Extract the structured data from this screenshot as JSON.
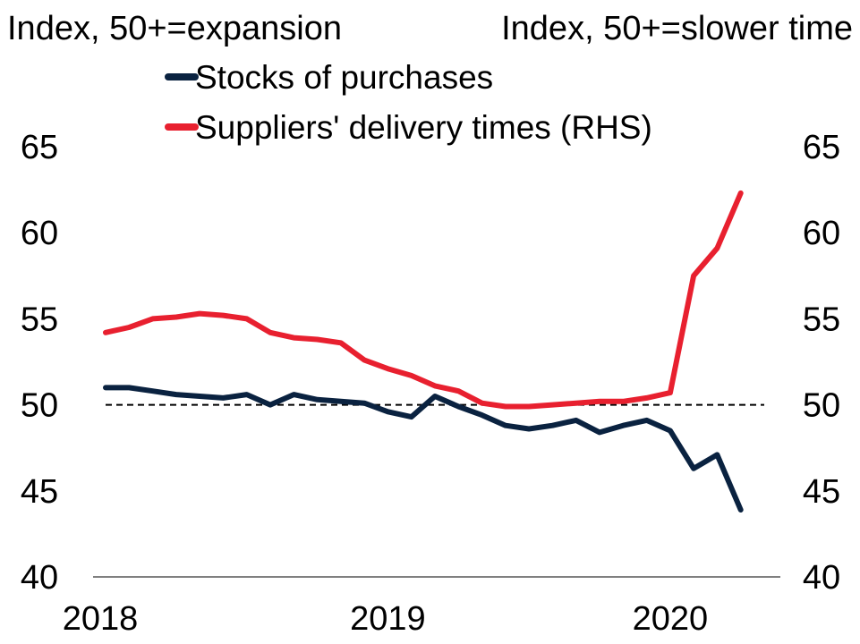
{
  "chart_data": {
    "type": "line",
    "title": "",
    "left_axis_label": "Index, 50+=expansion",
    "right_axis_label": "Index, 50+=slower time",
    "ylim": [
      40,
      65
    ],
    "y2lim": [
      40,
      65
    ],
    "yticks": [
      "40",
      "45",
      "50",
      "55",
      "60",
      "65"
    ],
    "y2ticks": [
      "40",
      "45",
      "50",
      "55",
      "60",
      "65"
    ],
    "xlim": [
      2018.0,
      2020.3333
    ],
    "xticks": [
      {
        "label": "2018",
        "value": 2018
      },
      {
        "label": "2019",
        "value": 2019
      },
      {
        "label": "2020",
        "value": 2020
      }
    ],
    "reference_line": {
      "value": 50,
      "style": "dashed",
      "color": "#000000"
    },
    "legend_position": "top-center",
    "x": [
      2018.0,
      2018.0833,
      2018.1667,
      2018.25,
      2018.3333,
      2018.4167,
      2018.5,
      2018.5833,
      2018.6667,
      2018.75,
      2018.8333,
      2018.9167,
      2019.0,
      2019.0833,
      2019.1667,
      2019.25,
      2019.3333,
      2019.4167,
      2019.5,
      2019.5833,
      2019.6667,
      2019.75,
      2019.8333,
      2019.9167,
      2020.0,
      2020.0833,
      2020.1667,
      2020.25
    ],
    "series": [
      {
        "name": "Stocks of purchases",
        "color": "#0a2240",
        "axis": "left",
        "values": [
          51.0,
          51.0,
          50.8,
          50.6,
          50.5,
          50.4,
          50.6,
          50.0,
          50.6,
          50.3,
          50.2,
          50.1,
          49.6,
          49.3,
          50.5,
          49.9,
          49.4,
          48.8,
          48.6,
          48.8,
          49.1,
          48.4,
          48.8,
          49.1,
          48.5,
          46.3,
          47.1,
          43.9
        ]
      },
      {
        "name": "Suppliers' delivery times (RHS)",
        "color": "#e8202f",
        "axis": "right",
        "values": [
          54.2,
          54.5,
          55.0,
          55.1,
          55.3,
          55.2,
          55.0,
          54.2,
          53.9,
          53.8,
          53.6,
          52.6,
          52.1,
          51.7,
          51.1,
          50.8,
          50.1,
          49.9,
          49.9,
          50.0,
          50.1,
          50.2,
          50.2,
          50.4,
          50.7,
          57.5,
          59.1,
          62.3
        ]
      }
    ]
  }
}
